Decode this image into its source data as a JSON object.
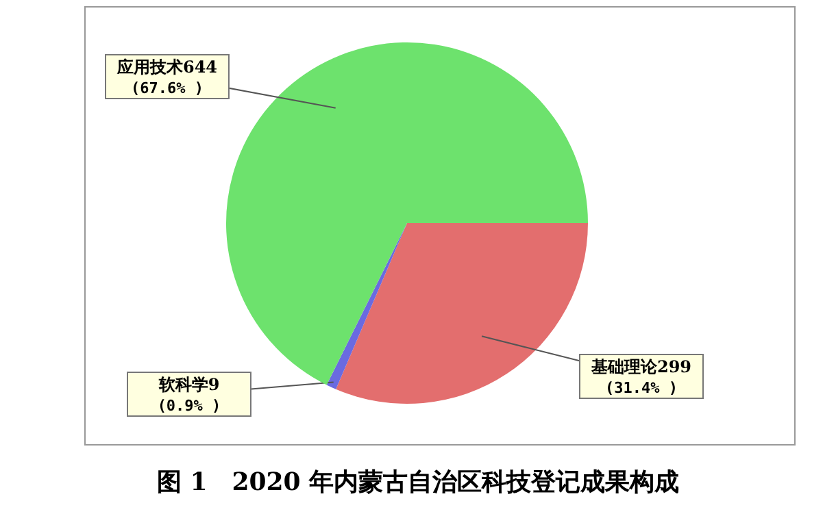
{
  "chart_data": {
    "type": "pie",
    "title": "图 1　2020 年内蒙古自治区科技登记成果构成",
    "categories": [
      "基础理论299",
      "软科学9",
      "应用技术644"
    ],
    "values": [
      31.4,
      0.9,
      67.6
    ],
    "value_labels": [
      "(31.4% )",
      "(0.9% )",
      "(67.6% )"
    ],
    "colors": [
      "#e36e6e",
      "#6a6ae0",
      "#6de26d"
    ]
  }
}
